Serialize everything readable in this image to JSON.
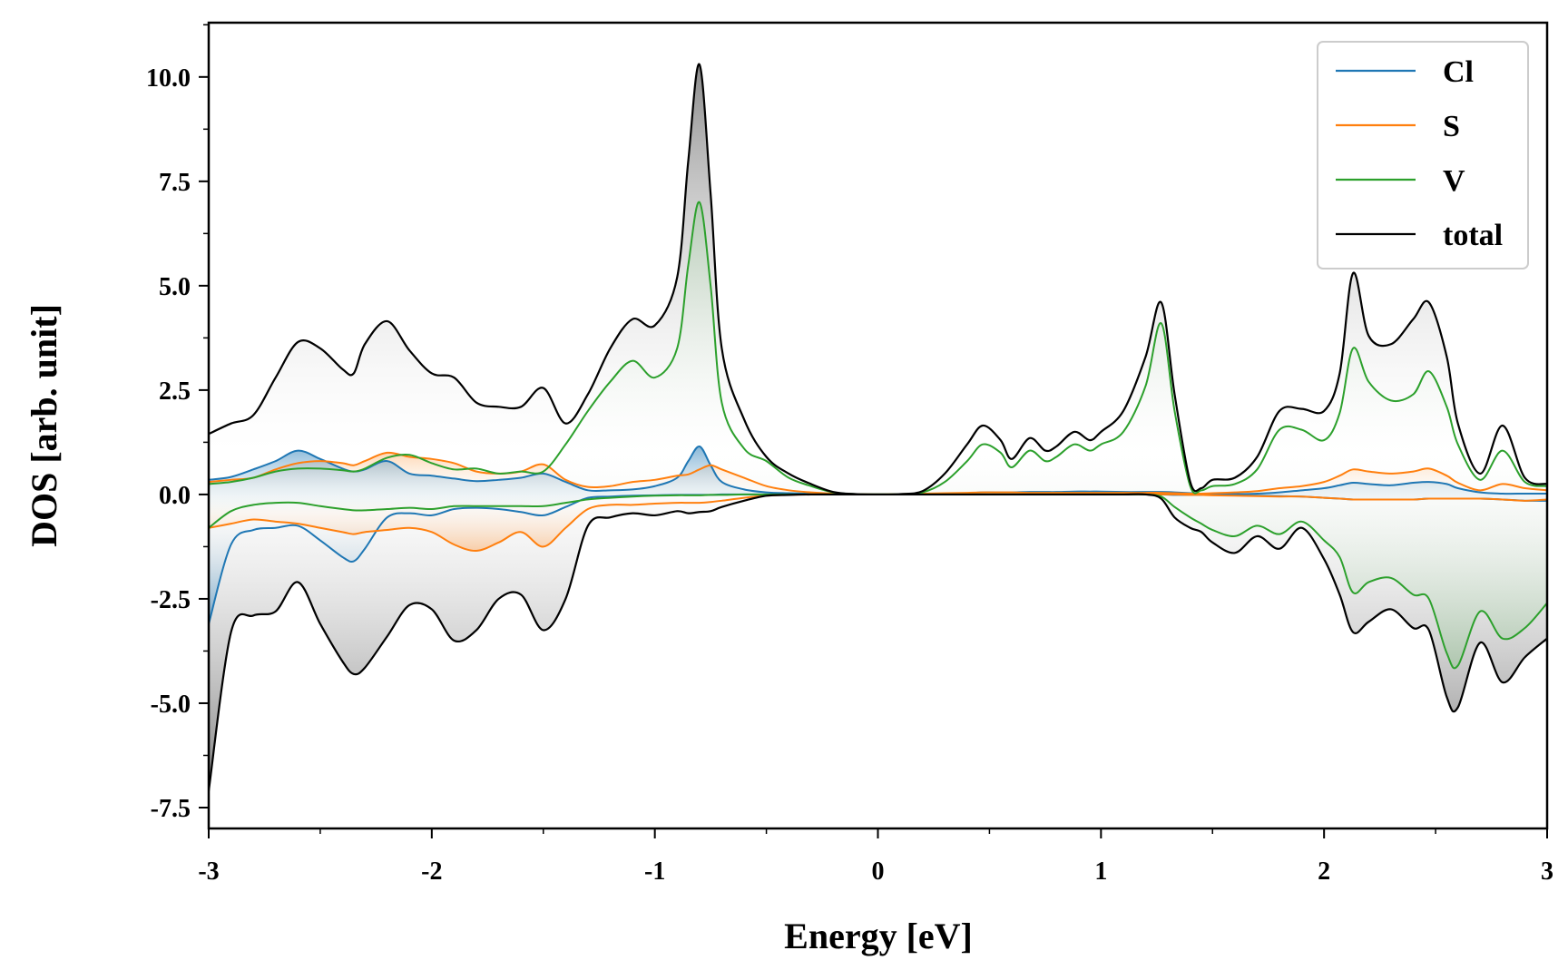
{
  "chart_data": {
    "type": "area",
    "title": "",
    "xlabel": "Energy [eV]",
    "ylabel": "DOS [arb. unit]",
    "xlim": [
      -3,
      3
    ],
    "ylim": [
      -8.0,
      11.3
    ],
    "xticks": [
      -3,
      -2,
      -1,
      0,
      1,
      2,
      3
    ],
    "xtick_labels": [
      "-3",
      "-2",
      "-1",
      "0",
      "1",
      "2",
      "3"
    ],
    "yticks": [
      -7.5,
      -5.0,
      -2.5,
      0.0,
      2.5,
      5.0,
      7.5,
      10.0
    ],
    "ytick_labels": [
      "-7.5",
      "-5.0",
      "-2.5",
      "0.0",
      "2.5",
      "5.0",
      "7.5",
      "10.0"
    ],
    "legend_position": "top-right",
    "x": [
      -3.0,
      -2.9,
      -2.8,
      -2.7,
      -2.6,
      -2.5,
      -2.4,
      -2.35,
      -2.3,
      -2.2,
      -2.1,
      -2.0,
      -1.9,
      -1.8,
      -1.7,
      -1.6,
      -1.5,
      -1.4,
      -1.3,
      -1.2,
      -1.1,
      -1.0,
      -0.9,
      -0.85,
      -0.8,
      -0.75,
      -0.7,
      -0.6,
      -0.5,
      -0.4,
      -0.3,
      -0.2,
      -0.1,
      0.0,
      0.1,
      0.2,
      0.3,
      0.4,
      0.47,
      0.55,
      0.6,
      0.68,
      0.75,
      0.8,
      0.88,
      0.95,
      1.0,
      1.1,
      1.2,
      1.27,
      1.33,
      1.4,
      1.45,
      1.5,
      1.6,
      1.7,
      1.8,
      1.9,
      2.0,
      2.07,
      2.13,
      2.2,
      2.3,
      2.4,
      2.47,
      2.55,
      2.6,
      2.7,
      2.8,
      2.9,
      3.0
    ],
    "series": [
      {
        "name": "Cl",
        "color": "#1f77b4",
        "up": [
          0.35,
          0.42,
          0.6,
          0.8,
          1.05,
          0.85,
          0.62,
          0.55,
          0.6,
          0.8,
          0.5,
          0.45,
          0.38,
          0.32,
          0.35,
          0.4,
          0.5,
          0.3,
          0.1,
          0.1,
          0.12,
          0.2,
          0.4,
          0.8,
          1.15,
          0.7,
          0.3,
          0.12,
          0.05,
          0.03,
          0.02,
          0.01,
          0.0,
          0.0,
          0.0,
          0.0,
          0.02,
          0.03,
          0.05,
          0.05,
          0.05,
          0.06,
          0.06,
          0.06,
          0.07,
          0.07,
          0.07,
          0.06,
          0.06,
          0.06,
          0.05,
          0.03,
          0.02,
          0.01,
          0.01,
          0.02,
          0.05,
          0.1,
          0.15,
          0.22,
          0.28,
          0.25,
          0.22,
          0.28,
          0.3,
          0.25,
          0.15,
          0.05,
          0.02,
          0.02,
          0.02
        ],
        "down": [
          -3.1,
          -1.2,
          -0.85,
          -0.8,
          -0.75,
          -1.1,
          -1.5,
          -1.6,
          -1.3,
          -0.55,
          -0.45,
          -0.5,
          -0.35,
          -0.32,
          -0.35,
          -0.42,
          -0.5,
          -0.3,
          -0.08,
          -0.05,
          -0.03,
          -0.02,
          -0.01,
          -0.01,
          -0.01,
          -0.01,
          -0.0,
          0.0,
          0.0,
          0.0,
          0.0,
          0.0,
          0.0,
          0.0,
          0.0,
          0.0,
          0.0,
          0.0,
          0.0,
          0.0,
          0.0,
          0.0,
          0.0,
          0.0,
          0.0,
          0.0,
          0.0,
          0.0,
          0.0,
          0.0,
          -0.01,
          -0.01,
          -0.01,
          -0.01,
          -0.02,
          -0.03,
          -0.04,
          -0.05,
          -0.08,
          -0.1,
          -0.12,
          -0.12,
          -0.12,
          -0.12,
          -0.1,
          -0.1,
          -0.1,
          -0.1,
          -0.12,
          -0.15,
          -0.15
        ]
      },
      {
        "name": "S",
        "color": "#ff7f0e",
        "up": [
          0.3,
          0.35,
          0.4,
          0.6,
          0.75,
          0.8,
          0.75,
          0.7,
          0.8,
          1.0,
          0.9,
          0.85,
          0.75,
          0.55,
          0.5,
          0.55,
          0.72,
          0.35,
          0.18,
          0.2,
          0.3,
          0.35,
          0.45,
          0.48,
          0.6,
          0.7,
          0.6,
          0.4,
          0.2,
          0.1,
          0.05,
          0.02,
          0.01,
          0.0,
          0.01,
          0.02,
          0.03,
          0.04,
          0.05,
          0.05,
          0.05,
          0.04,
          0.04,
          0.04,
          0.04,
          0.04,
          0.04,
          0.04,
          0.04,
          0.04,
          0.03,
          0.02,
          0.02,
          0.03,
          0.05,
          0.08,
          0.15,
          0.2,
          0.3,
          0.45,
          0.6,
          0.55,
          0.5,
          0.55,
          0.62,
          0.45,
          0.28,
          0.1,
          0.25,
          0.15,
          0.1
        ],
        "down": [
          -0.8,
          -0.7,
          -0.6,
          -0.65,
          -0.7,
          -0.8,
          -0.9,
          -0.95,
          -0.9,
          -0.85,
          -0.8,
          -0.9,
          -1.2,
          -1.35,
          -1.15,
          -0.9,
          -1.25,
          -0.8,
          -0.35,
          -0.25,
          -0.25,
          -0.22,
          -0.2,
          -0.2,
          -0.2,
          -0.18,
          -0.15,
          -0.08,
          -0.03,
          -0.01,
          0.0,
          0.0,
          0.0,
          0.0,
          0.0,
          0.0,
          0.0,
          0.0,
          0.0,
          0.0,
          0.0,
          0.0,
          0.0,
          0.0,
          0.0,
          0.0,
          0.0,
          0.0,
          0.0,
          0.0,
          0.0,
          -0.01,
          -0.01,
          -0.02,
          -0.03,
          -0.04,
          -0.05,
          -0.05,
          -0.08,
          -0.1,
          -0.12,
          -0.12,
          -0.12,
          -0.12,
          -0.1,
          -0.1,
          -0.1,
          -0.1,
          -0.12,
          -0.15,
          -0.12
        ]
      },
      {
        "name": "V",
        "color": "#2ca02c",
        "up": [
          0.25,
          0.3,
          0.4,
          0.55,
          0.62,
          0.62,
          0.58,
          0.55,
          0.62,
          0.88,
          0.95,
          0.75,
          0.6,
          0.62,
          0.5,
          0.55,
          0.55,
          1.2,
          2.0,
          2.7,
          3.2,
          2.8,
          3.5,
          5.5,
          7.0,
          5.0,
          2.2,
          1.1,
          0.8,
          0.4,
          0.2,
          0.05,
          0.01,
          0.0,
          0.01,
          0.05,
          0.3,
          0.8,
          1.2,
          1.0,
          0.65,
          1.05,
          0.8,
          0.9,
          1.2,
          1.05,
          1.2,
          1.5,
          2.6,
          4.1,
          2.0,
          0.2,
          0.1,
          0.2,
          0.25,
          0.6,
          1.55,
          1.55,
          1.3,
          1.95,
          3.5,
          2.7,
          2.25,
          2.4,
          2.95,
          2.1,
          1.2,
          0.35,
          1.05,
          0.3,
          0.2
        ],
        "down": [
          -0.8,
          -0.4,
          -0.25,
          -0.2,
          -0.2,
          -0.28,
          -0.35,
          -0.38,
          -0.38,
          -0.35,
          -0.32,
          -0.35,
          -0.28,
          -0.28,
          -0.28,
          -0.28,
          -0.28,
          -0.2,
          -0.12,
          -0.08,
          -0.05,
          -0.03,
          -0.02,
          -0.02,
          -0.02,
          -0.01,
          -0.01,
          0.0,
          0.0,
          0.0,
          0.0,
          0.0,
          0.0,
          0.0,
          0.0,
          0.0,
          0.0,
          0.0,
          0.0,
          0.0,
          0.0,
          0.0,
          0.0,
          0.0,
          0.0,
          0.0,
          0.0,
          0.0,
          0.0,
          -0.05,
          -0.3,
          -0.55,
          -0.7,
          -0.85,
          -1.0,
          -0.75,
          -0.95,
          -0.65,
          -1.1,
          -1.5,
          -2.35,
          -2.1,
          -2.0,
          -2.4,
          -2.5,
          -3.8,
          -4.1,
          -2.8,
          -3.45,
          -3.2,
          -2.6
        ]
      },
      {
        "name": "total",
        "color": "#000000",
        "up": [
          1.45,
          1.7,
          1.9,
          2.8,
          3.65,
          3.5,
          3.0,
          2.9,
          3.6,
          4.15,
          3.45,
          2.9,
          2.8,
          2.2,
          2.1,
          2.1,
          2.55,
          1.7,
          2.4,
          3.5,
          4.2,
          4.05,
          5.2,
          8.0,
          10.3,
          7.2,
          3.5,
          1.8,
          0.9,
          0.5,
          0.25,
          0.06,
          0.01,
          0.0,
          0.01,
          0.08,
          0.5,
          1.2,
          1.65,
          1.3,
          0.85,
          1.35,
          1.05,
          1.15,
          1.5,
          1.3,
          1.5,
          2.0,
          3.3,
          4.6,
          2.4,
          0.3,
          0.15,
          0.35,
          0.4,
          0.9,
          2.0,
          2.05,
          2.0,
          2.9,
          5.3,
          3.8,
          3.6,
          4.2,
          4.6,
          3.3,
          1.7,
          0.5,
          1.65,
          0.4,
          0.25
        ],
        "down": [
          -7.1,
          -3.3,
          -2.9,
          -2.8,
          -2.1,
          -3.1,
          -4.0,
          -4.3,
          -4.15,
          -3.4,
          -2.65,
          -2.75,
          -3.5,
          -3.25,
          -2.5,
          -2.4,
          -3.25,
          -2.5,
          -0.75,
          -0.55,
          -0.45,
          -0.5,
          -0.4,
          -0.45,
          -0.42,
          -0.4,
          -0.3,
          -0.15,
          -0.03,
          -0.01,
          0.0,
          0.0,
          0.0,
          0.0,
          0.0,
          0.0,
          0.0,
          0.0,
          0.0,
          0.0,
          0.0,
          0.0,
          0.0,
          0.0,
          0.0,
          0.0,
          0.0,
          0.0,
          0.0,
          -0.1,
          -0.55,
          -0.8,
          -0.9,
          -1.15,
          -1.4,
          -1.0,
          -1.3,
          -0.8,
          -1.55,
          -2.4,
          -3.3,
          -3.05,
          -2.75,
          -3.2,
          -3.25,
          -4.85,
          -5.1,
          -3.55,
          -4.5,
          -3.9,
          -3.45
        ]
      }
    ]
  }
}
